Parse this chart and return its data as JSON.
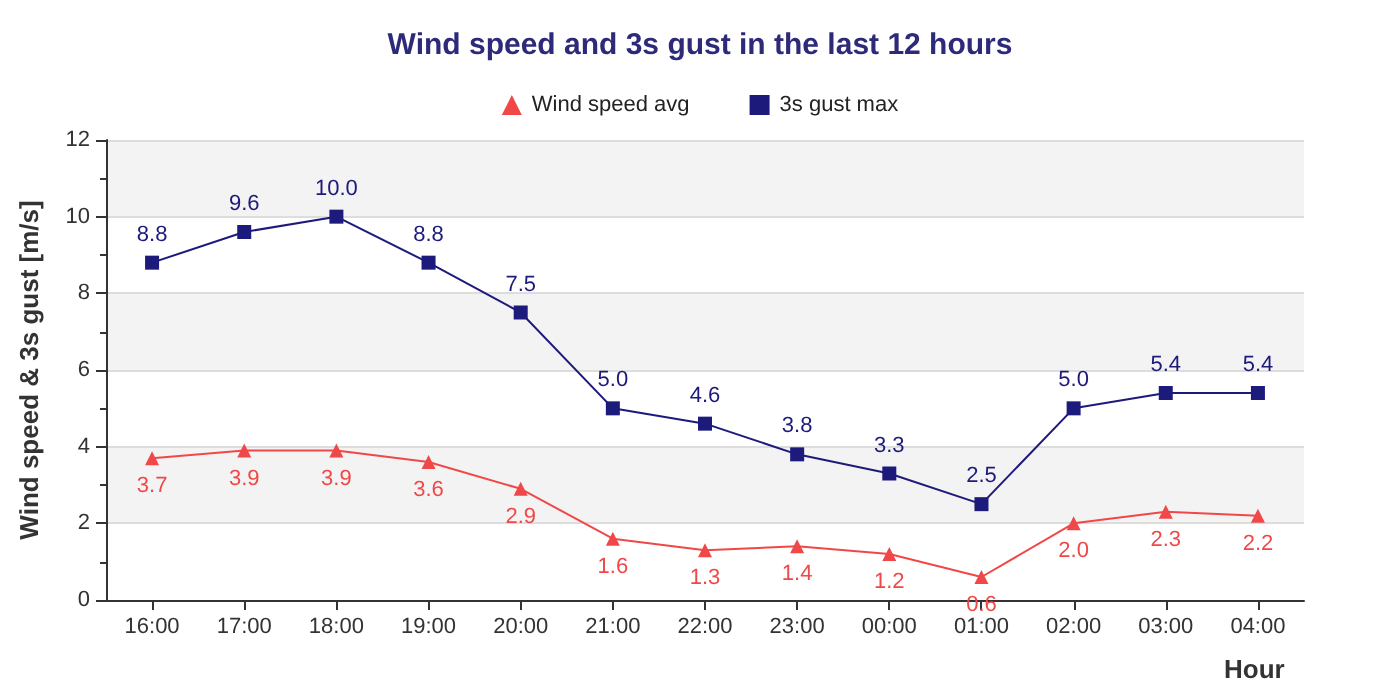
{
  "chart_data": {
    "type": "line",
    "title": "Wind speed and 3s gust in the last 12 hours",
    "xlabel": "Hour",
    "ylabel": "Wind speed & 3s gust [m/s]",
    "categories": [
      "16:00",
      "17:00",
      "18:00",
      "19:00",
      "20:00",
      "21:00",
      "22:00",
      "23:00",
      "00:00",
      "01:00",
      "02:00",
      "03:00",
      "04:00"
    ],
    "series": [
      {
        "name": "Wind speed avg",
        "color": "#f04848",
        "marker": "triangle",
        "values": [
          3.7,
          3.9,
          3.9,
          3.6,
          2.9,
          1.6,
          1.3,
          1.4,
          1.2,
          0.6,
          2.0,
          2.3,
          2.2
        ],
        "value_labels": [
          "3.7",
          "3.9",
          "3.9",
          "3.6",
          "2.9",
          "1.6",
          "1.3",
          "1.4",
          "1.2",
          "0.6",
          "2.0",
          "2.3",
          "2.2"
        ]
      },
      {
        "name": "3s gust max",
        "color": "#1c1a7a",
        "marker": "square",
        "values": [
          8.8,
          9.6,
          10.0,
          8.8,
          7.5,
          5.0,
          4.6,
          3.8,
          3.3,
          2.5,
          5.0,
          5.4,
          5.4
        ],
        "value_labels": [
          "8.8",
          "9.6",
          "10.0",
          "8.8",
          "7.5",
          "5.0",
          "4.6",
          "3.8",
          "3.3",
          "2.5",
          "5.0",
          "5.4",
          "5.4"
        ]
      }
    ],
    "ylim": [
      0,
      12
    ],
    "yticks": [
      0,
      2,
      4,
      6,
      8,
      10,
      12
    ],
    "grid": "y",
    "legend": "top",
    "line_style": "solid"
  }
}
